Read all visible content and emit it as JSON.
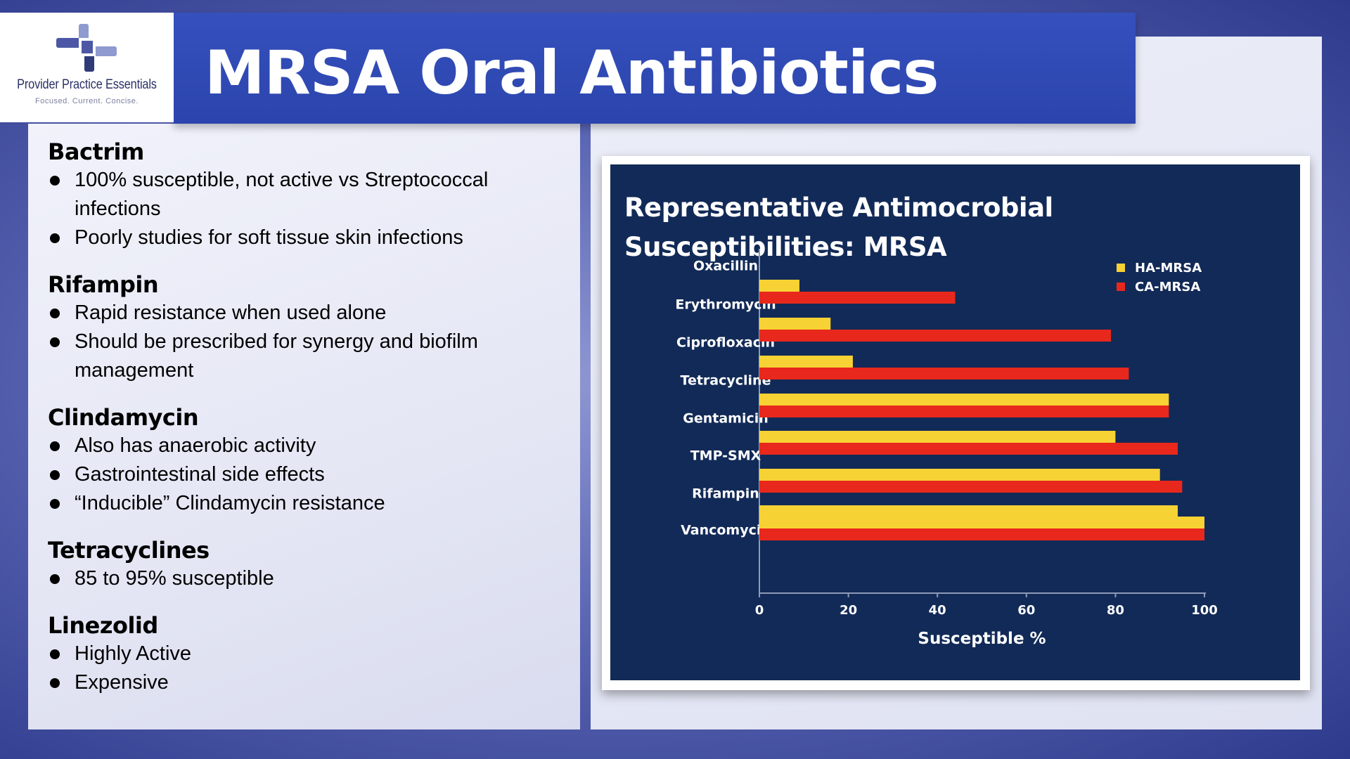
{
  "brand": {
    "name": "Provider Practice Essentials",
    "tagline": "Focused.  Current.  Concise.",
    "logo_icon": "medical-cross-icon",
    "colors": {
      "dark": "#2f3a78",
      "mid": "#4c58a6",
      "light": "#8f9ad0"
    }
  },
  "header": {
    "title": "MRSA Oral Antibiotics"
  },
  "sections": [
    {
      "heading": "Bactrim",
      "bullets": [
        "100% susceptible, not active vs Streptococcal infections",
        "Poorly studies for soft tissue skin infections"
      ]
    },
    {
      "heading": "Rifampin",
      "bullets": [
        "Rapid resistance when used alone",
        "Should be prescribed for synergy and biofilm management"
      ]
    },
    {
      "heading": "Clindamycin",
      "bullets": [
        "Also has anaerobic activity",
        "Gastrointestinal side effects",
        "“Inducible” Clindamycin resistance"
      ]
    },
    {
      "heading": "Tetracyclines",
      "bullets": [
        "85 to 95% susceptible"
      ]
    },
    {
      "heading": "Linezolid",
      "bullets": [
        "Highly Active",
        "Expensive"
      ]
    }
  ],
  "chart_data": {
    "type": "bar",
    "orientation": "horizontal",
    "title": "Representative Antimocrobial Susceptibilities:  MRSA",
    "xlabel": "Susceptible %",
    "ylabel": "",
    "xlim": [
      0,
      100
    ],
    "xticks": [
      0,
      20,
      40,
      60,
      80,
      100
    ],
    "categories": [
      "Oxacillin",
      "Erythromycin",
      "Ciprofloxacin",
      "Tetracycline",
      "Gentamicin",
      "TMP-SMX",
      "Rifampin",
      "Vancomycin"
    ],
    "series": [
      {
        "name": "HA-MRSA",
        "color": "#f7d234",
        "values": [
          0,
          9,
          16,
          21,
          92,
          80,
          90,
          94
        ]
      },
      {
        "name": "CA-MRSA",
        "color": "#e8281c",
        "values": [
          0,
          44,
          79,
          83,
          92,
          94,
          95,
          96
        ]
      }
    ],
    "extra_bar": {
      "series": "both",
      "category_after_last": true,
      "ha": 100,
      "ca": 100
    },
    "legend_position": "top-right",
    "grid": false,
    "background": "#122a57"
  }
}
